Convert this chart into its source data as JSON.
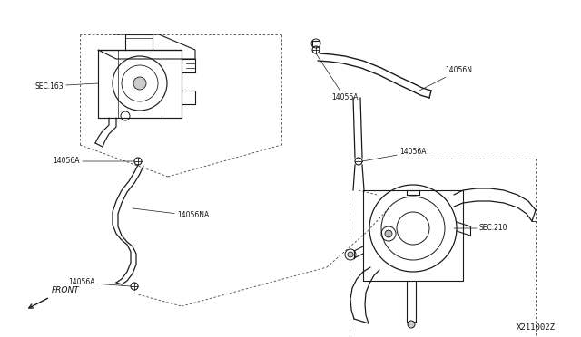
{
  "bg_color": "#ffffff",
  "line_color": "#1a1a1a",
  "dash_color": "#444444",
  "label_color": "#111111",
  "part_number": "X211002Z",
  "labels": {
    "sec163": "SEC.163",
    "sec210": "SEC.210",
    "part_14056A_1": "14056A",
    "part_14056A_2": "14056A",
    "part_14056A_3": "14056A",
    "part_14056A_4": "14056A",
    "part_14056NA": "14056NA",
    "part_14056N": "14056N",
    "front": "FRONT"
  },
  "fs": 5.5,
  "fs_pn": 6.5
}
